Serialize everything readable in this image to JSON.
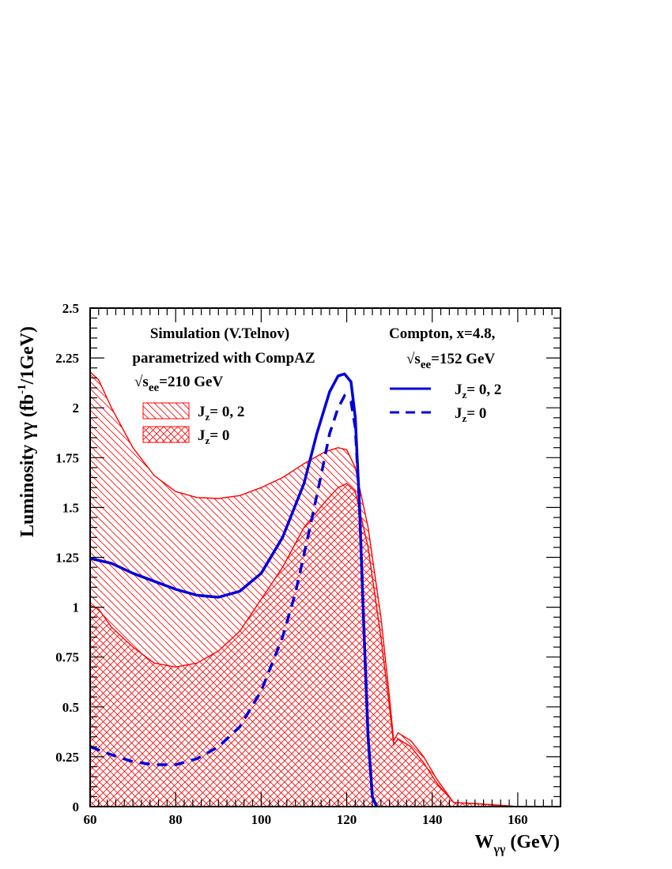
{
  "chart_data": {
    "type": "area",
    "title": "",
    "xlabel": "W",
    "xlabel_sub": "γγ",
    "xlabel_unit": " (GeV)",
    "ylabel": "Luminosity γγ (fb",
    "ylabel_sup": "-1",
    "ylabel_tail": "/1GeV)",
    "xlim": [
      60,
      170
    ],
    "ylim": [
      0,
      2.5
    ],
    "xticks": [
      60,
      80,
      100,
      120,
      140,
      160
    ],
    "xtick_labels": [
      "60",
      "80",
      "100",
      "120",
      "140",
      "160"
    ],
    "yticks": [
      0,
      0.25,
      0.5,
      0.75,
      1,
      1.25,
      1.5,
      1.75,
      2,
      2.25,
      2.5
    ],
    "ytick_labels": [
      "0",
      "0.25",
      "0.5",
      "0.75",
      "1",
      "1.25",
      "1.5",
      "1.75",
      "2",
      "2.25",
      "2.5"
    ],
    "annotations": {
      "left_line1": "Simulation (V.Telnov)",
      "left_line2": "parametrized with CompAZ",
      "left_sqrt": "√s",
      "left_sub": "ee",
      "left_val": "=210 GeV",
      "right_line1": "Compton, x=4.8,",
      "right_sqrt": "√s",
      "right_sub": "ee",
      "right_val": "=152 GeV"
    },
    "legend": {
      "left_position": "upper-left",
      "right_position": "upper-right",
      "items": [
        {
          "group": "simulation",
          "style": "hatch-back",
          "label_main": "J",
          "label_sub": "z",
          "label_rest": "= 0, 2"
        },
        {
          "group": "simulation",
          "style": "hatch-cross",
          "label_main": "J",
          "label_sub": "z",
          "label_rest": "= 0"
        },
        {
          "group": "compton",
          "style": "solid",
          "label_main": "J",
          "label_sub": "z",
          "label_rest": "= 0, 2"
        },
        {
          "group": "compton",
          "style": "dashed",
          "label_main": "J",
          "label_sub": "z",
          "label_rest": "= 0"
        }
      ]
    },
    "series": [
      {
        "name": "Simulation Jz=0,2",
        "kind": "hatched-area",
        "color": "#ff0000",
        "x": [
          60,
          62,
          65,
          70,
          75,
          80,
          85,
          90,
          95,
          100,
          105,
          110,
          115,
          118,
          120,
          122,
          125,
          128,
          130,
          131,
          132,
          135,
          138,
          141,
          145,
          150,
          160,
          170
        ],
        "y": [
          2.18,
          2.14,
          2.0,
          1.8,
          1.66,
          1.58,
          1.55,
          1.545,
          1.56,
          1.6,
          1.65,
          1.72,
          1.78,
          1.8,
          1.79,
          1.7,
          1.4,
          0.95,
          0.55,
          0.33,
          0.37,
          0.33,
          0.25,
          0.14,
          0.02,
          0.015,
          0.0,
          0.0
        ]
      },
      {
        "name": "Simulation Jz=0",
        "kind": "hatched-area",
        "color": "#ff0000",
        "x": [
          60,
          62,
          65,
          70,
          75,
          80,
          85,
          90,
          95,
          100,
          105,
          110,
          115,
          118,
          120,
          122,
          125,
          128,
          130,
          131,
          132,
          135,
          138,
          141,
          145,
          150,
          160,
          170
        ],
        "y": [
          1.01,
          0.99,
          0.9,
          0.8,
          0.72,
          0.7,
          0.72,
          0.78,
          0.88,
          1.04,
          1.2,
          1.4,
          1.53,
          1.6,
          1.62,
          1.58,
          1.3,
          0.85,
          0.5,
          0.31,
          0.34,
          0.3,
          0.22,
          0.12,
          0.02,
          0.015,
          0.0,
          0.0
        ]
      },
      {
        "name": "Compton Jz=0,2",
        "kind": "line",
        "style": "solid",
        "color": "#0000dd",
        "x": [
          60,
          65,
          70,
          75,
          80,
          85,
          90,
          95,
          100,
          105,
          110,
          113,
          116,
          118,
          119.5,
          121,
          122,
          123,
          124,
          125,
          126,
          127
        ],
        "y": [
          1.245,
          1.22,
          1.17,
          1.13,
          1.09,
          1.06,
          1.05,
          1.08,
          1.17,
          1.35,
          1.62,
          1.87,
          2.08,
          2.16,
          2.17,
          2.13,
          1.95,
          1.5,
          0.9,
          0.35,
          0.05,
          0.0
        ]
      },
      {
        "name": "Compton Jz=0",
        "kind": "line",
        "style": "dashed",
        "color": "#0000dd",
        "x": [
          60,
          65,
          70,
          75,
          80,
          85,
          90,
          95,
          100,
          105,
          108,
          111,
          114,
          116,
          118,
          119.5,
          121,
          122,
          123,
          124,
          125,
          126,
          127
        ],
        "y": [
          0.3,
          0.26,
          0.225,
          0.21,
          0.21,
          0.24,
          0.3,
          0.4,
          0.58,
          0.85,
          1.07,
          1.36,
          1.66,
          1.87,
          2.0,
          2.06,
          2.03,
          1.9,
          1.5,
          0.9,
          0.35,
          0.05,
          0.0
        ]
      }
    ]
  }
}
